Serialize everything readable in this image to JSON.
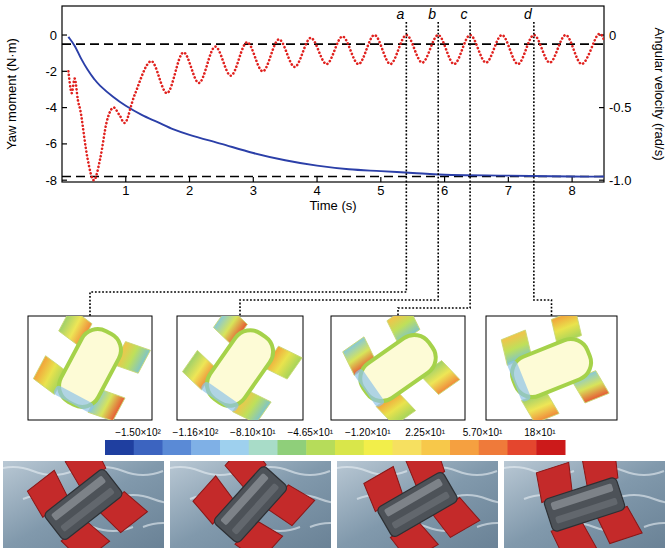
{
  "chart_data": {
    "type": "line",
    "x_label": "Time (s)",
    "y_label": "Yaw moment (N·m)",
    "y2_label": "Angular velocity (rad/s)",
    "xlim": [
      0,
      8.5
    ],
    "xticks": [
      1,
      2,
      3,
      4,
      5,
      6,
      7,
      8
    ],
    "ylim": [
      -8.1,
      1.6
    ],
    "yticks": [
      0,
      -2,
      -4,
      -6,
      -8
    ],
    "y2lim": [
      -1.0125,
      0.2
    ],
    "y2ticks": [
      0,
      -0.5,
      {
        "value": -1,
        "label": "-1.0"
      }
    ],
    "grid": false,
    "series": [
      {
        "color": "#2b3fa8",
        "line_style": "solid",
        "x": [
          0.1,
          0.2,
          0.3,
          0.4,
          0.5,
          0.6,
          0.8,
          1.0,
          1.25,
          1.5,
          1.75,
          2.0,
          2.5,
          3.0,
          3.5,
          4.0,
          4.5,
          5.0,
          5.5,
          6.0,
          7.0,
          8.0,
          8.5
        ],
        "values": [
          -0.1,
          -0.6,
          -1.3,
          -1.9,
          -2.4,
          -2.8,
          -3.4,
          -3.9,
          -4.4,
          -4.8,
          -5.2,
          -5.5,
          -6.0,
          -6.5,
          -6.9,
          -7.2,
          -7.4,
          -7.5,
          -7.6,
          -7.7,
          -7.75,
          -7.8,
          -7.8
        ]
      },
      {
        "color": "#e0211e",
        "line_style": "dotted",
        "axis": "y2",
        "x": [
          0.1,
          0.15,
          0.2,
          0.25,
          0.3,
          0.4,
          0.5,
          0.6,
          0.7,
          0.8,
          0.9,
          1.0,
          1.15,
          1.4,
          1.65,
          1.9,
          2.15,
          2.4,
          2.65,
          2.9,
          3.15,
          3.4,
          3.65,
          3.9,
          4.15,
          4.4,
          4.65,
          4.9,
          5.15,
          5.4,
          5.65,
          5.9,
          6.15,
          6.4,
          6.65,
          6.9,
          7.15,
          7.4,
          7.65,
          7.9,
          8.15,
          8.4,
          8.5
        ],
        "values": [
          -0.25,
          -0.4,
          -0.3,
          -0.45,
          -0.55,
          -0.85,
          -1.0,
          -0.85,
          -0.6,
          -0.5,
          -0.55,
          -0.6,
          -0.4,
          -0.18,
          -0.4,
          -0.12,
          -0.33,
          -0.08,
          -0.28,
          -0.05,
          -0.25,
          -0.03,
          -0.22,
          -0.02,
          -0.2,
          -0.01,
          -0.2,
          0,
          -0.2,
          0,
          -0.19,
          0,
          -0.2,
          0,
          -0.19,
          0,
          -0.2,
          0,
          -0.19,
          0,
          -0.2,
          0,
          -0.03
        ]
      }
    ],
    "reference_lines": [
      -0.5,
      -7.8
    ],
    "markers": [
      {
        "label": "a",
        "x": 5.4
      },
      {
        "label": "b",
        "x": 5.9
      },
      {
        "label": "c",
        "x": 6.4
      },
      {
        "label": "d",
        "x": 7.4
      }
    ]
  },
  "colorbar": {
    "labels": [
      "−1.50×10²",
      "−1.16×10²",
      "−8.10×10¹",
      "−4.65×10¹",
      "−1.20×10¹",
      "2.25×10¹",
      "5.70×10¹",
      "18×10¹"
    ],
    "colors": [
      "#1f3fa0",
      "#3c64c0",
      "#5a8ad6",
      "#7fb0e6",
      "#9ed0ee",
      "#a8dcc8",
      "#8fcf7a",
      "#b6dc5a",
      "#d9e64a",
      "#f2ee4a",
      "#f6e060",
      "#f7c84a",
      "#f5a040",
      "#ef7a3a",
      "#e4462e",
      "#cc1a1a"
    ]
  }
}
